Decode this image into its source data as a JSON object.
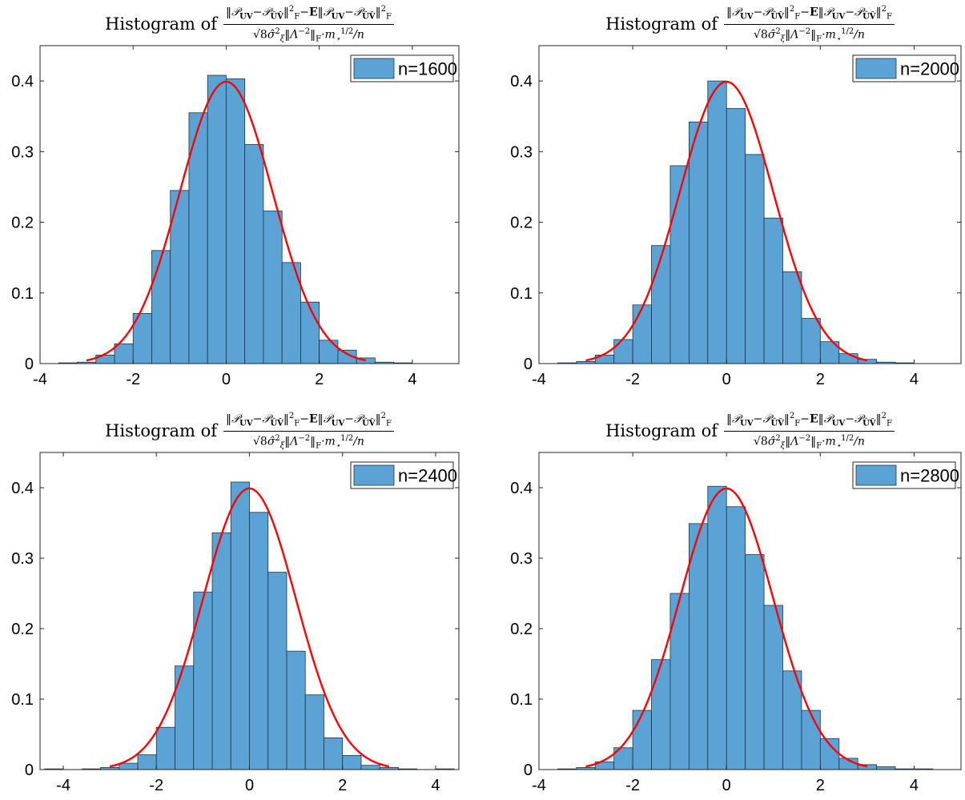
{
  "figure": {
    "colors": {
      "bar_fill": "#5ba3d4",
      "bar_edge": "#1f3347",
      "curve": "#ff0000",
      "axes": "#262626",
      "background": "#ffffff"
    }
  },
  "chart_data": [
    {
      "type": "bar",
      "title": {
        "prefix": "Histogram of",
        "numerator": "‖𝒫UV − 𝒫ÛV̂‖F² − E‖𝒫UV − 𝒫ÛV̂‖F²",
        "denominator": "√8 σ̂ξ² ‖Λ⁻²‖F · m⋆¹ᐟ² / n"
      },
      "legend": "n=1600",
      "legend_position": "top-right",
      "xlim": [
        -4,
        5
      ],
      "ylim": [
        0,
        0.45
      ],
      "xticks": [
        -4,
        -2,
        0,
        2,
        4
      ],
      "yticks": [
        0,
        0.1,
        0.2,
        0.3,
        0.4
      ],
      "ytick_labels": [
        "0",
        "0.1",
        "0.2",
        "0.3",
        "0.4"
      ],
      "bin_edges": [
        -3.6,
        -3.2,
        -2.8,
        -2.4,
        -2.0,
        -1.6,
        -1.2,
        -0.8,
        -0.4,
        0.0,
        0.4,
        0.8,
        1.2,
        1.6,
        2.0,
        2.4,
        2.8,
        3.2,
        3.6,
        4.0,
        4.4
      ],
      "values": [
        0.001,
        0.002,
        0.012,
        0.028,
        0.071,
        0.16,
        0.245,
        0.355,
        0.408,
        0.403,
        0.31,
        0.216,
        0.143,
        0.087,
        0.033,
        0.019,
        0.008,
        0.002,
        0.001,
        0.0
      ],
      "curve": {
        "type": "normal-pdf",
        "mean": 0,
        "sd": 1,
        "x_range": [
          -3,
          3
        ]
      },
      "grid": false
    },
    {
      "type": "bar",
      "title": {
        "prefix": "Histogram of",
        "numerator": "‖𝒫UV − 𝒫ÛV̂‖F² − E‖𝒫UV − 𝒫ÛV̂‖F²",
        "denominator": "√8 σ̂ξ² ‖Λ⁻²‖F · m⋆¹ᐟ² / n"
      },
      "legend": "n=2000",
      "legend_position": "top-right",
      "xlim": [
        -4,
        5
      ],
      "ylim": [
        0,
        0.45
      ],
      "xticks": [
        -4,
        -2,
        0,
        2,
        4
      ],
      "yticks": [
        0,
        0.1,
        0.2,
        0.3,
        0.4
      ],
      "ytick_labels": [
        "0",
        "0.1",
        "0.2",
        "0.3",
        "0.4"
      ],
      "bin_edges": [
        -3.6,
        -3.2,
        -2.8,
        -2.4,
        -2.0,
        -1.6,
        -1.2,
        -0.8,
        -0.4,
        0.0,
        0.4,
        0.8,
        1.2,
        1.6,
        2.0,
        2.4,
        2.8,
        3.2,
        3.6,
        4.0,
        4.4
      ],
      "values": [
        0.001,
        0.003,
        0.012,
        0.034,
        0.083,
        0.167,
        0.28,
        0.342,
        0.4,
        0.361,
        0.296,
        0.206,
        0.13,
        0.064,
        0.031,
        0.014,
        0.006,
        0.002,
        0.001,
        0.0
      ],
      "curve": {
        "type": "normal-pdf",
        "mean": 0,
        "sd": 1,
        "x_range": [
          -3,
          3
        ]
      },
      "grid": false
    },
    {
      "type": "bar",
      "title": {
        "prefix": "Histogram of",
        "numerator": "‖𝒫UV − 𝒫ÛV̂‖F² − E‖𝒫UV − 𝒫ÛV̂‖F²",
        "denominator": "√8 σ̂ξ² ‖Λ⁻²‖F · m⋆¹ᐟ² / n"
      },
      "legend": "n=2400",
      "legend_position": "top-right",
      "xlim": [
        -4.5,
        4.5
      ],
      "ylim": [
        0,
        0.45
      ],
      "xticks": [
        -4,
        -2,
        0,
        2,
        4
      ],
      "yticks": [
        0,
        0.1,
        0.2,
        0.3,
        0.4
      ],
      "ytick_labels": [
        "0",
        "0.1",
        "0.2",
        "0.3",
        "0.4"
      ],
      "bin_edges": [
        -4.4,
        -4.0,
        -3.6,
        -3.2,
        -2.8,
        -2.4,
        -2.0,
        -1.6,
        -1.2,
        -0.8,
        -0.4,
        0.0,
        0.4,
        0.8,
        1.2,
        1.6,
        2.0,
        2.4,
        2.8,
        3.2,
        3.6,
        4.0,
        4.4
      ],
      "values": [
        0.001,
        0.0,
        0.001,
        0.003,
        0.009,
        0.021,
        0.06,
        0.147,
        0.252,
        0.336,
        0.408,
        0.365,
        0.28,
        0.168,
        0.106,
        0.045,
        0.02,
        0.006,
        0.003,
        0.001,
        0.0,
        0.001
      ],
      "curve": {
        "type": "normal-pdf",
        "mean": 0,
        "sd": 1,
        "x_range": [
          -3,
          3
        ]
      },
      "grid": false
    },
    {
      "type": "bar",
      "title": {
        "prefix": "Histogram of",
        "numerator": "‖𝒫UV − 𝒫ÛV̂‖F² − E‖𝒫UV − 𝒫ÛV̂‖F²",
        "denominator": "√8 σ̂ξ² ‖Λ⁻²‖F · m⋆¹ᐟ² / n"
      },
      "legend": "n=2800",
      "legend_position": "top-right",
      "xlim": [
        -4,
        5
      ],
      "ylim": [
        0,
        0.45
      ],
      "xticks": [
        -4,
        -2,
        0,
        2,
        4
      ],
      "yticks": [
        0,
        0.1,
        0.2,
        0.3,
        0.4
      ],
      "ytick_labels": [
        "0",
        "0.1",
        "0.2",
        "0.3",
        "0.4"
      ],
      "bin_edges": [
        -3.6,
        -3.2,
        -2.8,
        -2.4,
        -2.0,
        -1.6,
        -1.2,
        -0.8,
        -0.4,
        0.0,
        0.4,
        0.8,
        1.2,
        1.6,
        2.0,
        2.4,
        2.8,
        3.2,
        3.6,
        4.0,
        4.4
      ],
      "values": [
        0.001,
        0.003,
        0.011,
        0.031,
        0.084,
        0.156,
        0.25,
        0.349,
        0.402,
        0.373,
        0.305,
        0.233,
        0.14,
        0.084,
        0.044,
        0.016,
        0.007,
        0.004,
        0.001,
        0.001
      ],
      "curve": {
        "type": "normal-pdf",
        "mean": 0,
        "sd": 1,
        "x_range": [
          -3,
          3
        ]
      },
      "grid": false
    }
  ]
}
